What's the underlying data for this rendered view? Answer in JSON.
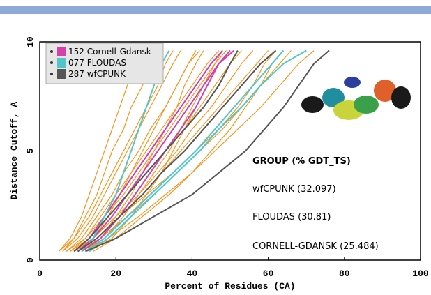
{
  "chart_data": {
    "type": "line",
    "xlabel": "Percent of Residues (CA)",
    "ylabel": "Distance Cutoff, A",
    "xlim": [
      0,
      100
    ],
    "xticks": [
      0,
      20,
      40,
      60,
      80,
      100
    ],
    "ylim": [
      0,
      10
    ],
    "yticks": [
      0,
      5,
      10
    ],
    "legend": "upper left",
    "annotations": [
      "GROUP (% GDT_TS)",
      "wfCPUNK (32.097)",
      "FLOUDAS (30.81)",
      "CORNELL-GDANSK (25.484)"
    ],
    "y": [
      0.4,
      1,
      2,
      3,
      4,
      5,
      6,
      7,
      8,
      9,
      9.6
    ],
    "series": [
      {
        "color": "#f7941d",
        "x": [
          5,
          8,
          11,
          13,
          15,
          17,
          19,
          21,
          23,
          25,
          27
        ]
      },
      {
        "color": "#f7941d",
        "x": [
          6,
          10,
          14,
          17,
          20,
          23,
          26,
          29,
          32,
          35,
          37
        ]
      },
      {
        "color": "#f7941d",
        "x": [
          7,
          12,
          16,
          20,
          24,
          28,
          32,
          36,
          40,
          44,
          47
        ]
      },
      {
        "color": "#f7941d",
        "x": [
          8,
          13,
          18,
          23,
          28,
          33,
          38,
          42,
          46,
          50,
          53
        ]
      },
      {
        "color": "#f7941d",
        "x": [
          9,
          15,
          21,
          27,
          32,
          37,
          42,
          47,
          52,
          57,
          60
        ]
      },
      {
        "color": "#f7941d",
        "x": [
          10,
          16,
          23,
          30,
          36,
          42,
          48,
          53,
          58,
          63,
          66
        ]
      },
      {
        "color": "#f7941d",
        "x": [
          12,
          18,
          26,
          33,
          40,
          46,
          52,
          58,
          63,
          68,
          72
        ]
      },
      {
        "color": "#f7941d",
        "x": [
          10,
          14,
          18,
          21,
          24,
          27,
          30,
          33,
          36,
          39,
          41
        ]
      },
      {
        "color": "#f7941d",
        "x": [
          6,
          9,
          12,
          15,
          17,
          19,
          22,
          24,
          27,
          29,
          31
        ]
      },
      {
        "color": "#f7941d",
        "x": [
          7,
          11,
          15,
          19,
          22,
          26,
          29,
          33,
          36,
          39,
          42
        ]
      },
      {
        "color": "#f7941d",
        "x": [
          11,
          17,
          22,
          26,
          30,
          34,
          37,
          40,
          43,
          46,
          48
        ]
      },
      {
        "color": "#f7941d",
        "x": [
          8,
          12,
          17,
          22,
          26,
          30,
          34,
          38,
          42,
          46,
          49
        ]
      },
      {
        "color": "#f7941d",
        "x": [
          9,
          14,
          20,
          26,
          31,
          36,
          40,
          45,
          49,
          53,
          56
        ]
      },
      {
        "color": "#f7941d",
        "x": [
          13,
          19,
          24,
          28,
          32,
          35,
          38,
          41,
          44,
          47,
          50
        ]
      },
      {
        "color": "#f7941d",
        "x": [
          5,
          9,
          13,
          16,
          19,
          22,
          25,
          28,
          31,
          33,
          35
        ]
      },
      {
        "color": "#f7941d",
        "x": [
          14,
          20,
          27,
          34,
          40,
          45,
          50,
          54,
          58,
          61,
          64
        ]
      },
      {
        "color": "#f7941d",
        "x": [
          12,
          16,
          20,
          24,
          27,
          30,
          33,
          36,
          38,
          41,
          43
        ]
      },
      {
        "color": "#f7941d",
        "x": [
          10,
          15,
          21,
          28,
          35,
          41,
          47,
          52,
          56,
          59,
          62
        ]
      },
      {
        "name": "152 Cornell-Gdansk",
        "color": "#d63fa8",
        "x": [
          9,
          13,
          17,
          21,
          25,
          29,
          33,
          37,
          41,
          45,
          48
        ]
      },
      {
        "color": "#d63fa8",
        "x": [
          11,
          16,
          21,
          25,
          29,
          33,
          37,
          41,
          44,
          47,
          50
        ]
      },
      {
        "color": "#d63fa8",
        "x": [
          10,
          14,
          19,
          23,
          27,
          31,
          35,
          39,
          43,
          47,
          51
        ]
      },
      {
        "name": "077 FLOUDAS",
        "color": "#4fc6c9",
        "x": [
          11,
          14,
          17,
          20,
          22,
          24,
          26,
          28,
          30,
          32,
          34
        ]
      },
      {
        "color": "#4fc6c9",
        "x": [
          12,
          17,
          23,
          29,
          35,
          41,
          46,
          51,
          56,
          61,
          64
        ]
      },
      {
        "color": "#4fc6c9",
        "x": [
          13,
          18,
          24,
          30,
          36,
          42,
          47,
          53,
          58,
          64,
          70
        ]
      },
      {
        "name": "287 wfCPUNK",
        "color": "#555555",
        "x": [
          10,
          15,
          21,
          27,
          32,
          38,
          43,
          48,
          53,
          58,
          62
        ]
      },
      {
        "color": "#555555",
        "x": [
          12,
          20,
          30,
          40,
          47,
          54,
          59,
          64,
          68,
          72,
          76
        ]
      },
      {
        "color": "#555555",
        "x": [
          9,
          13,
          18,
          23,
          28,
          33,
          38,
          43,
          47,
          50,
          52
        ]
      }
    ]
  }
}
